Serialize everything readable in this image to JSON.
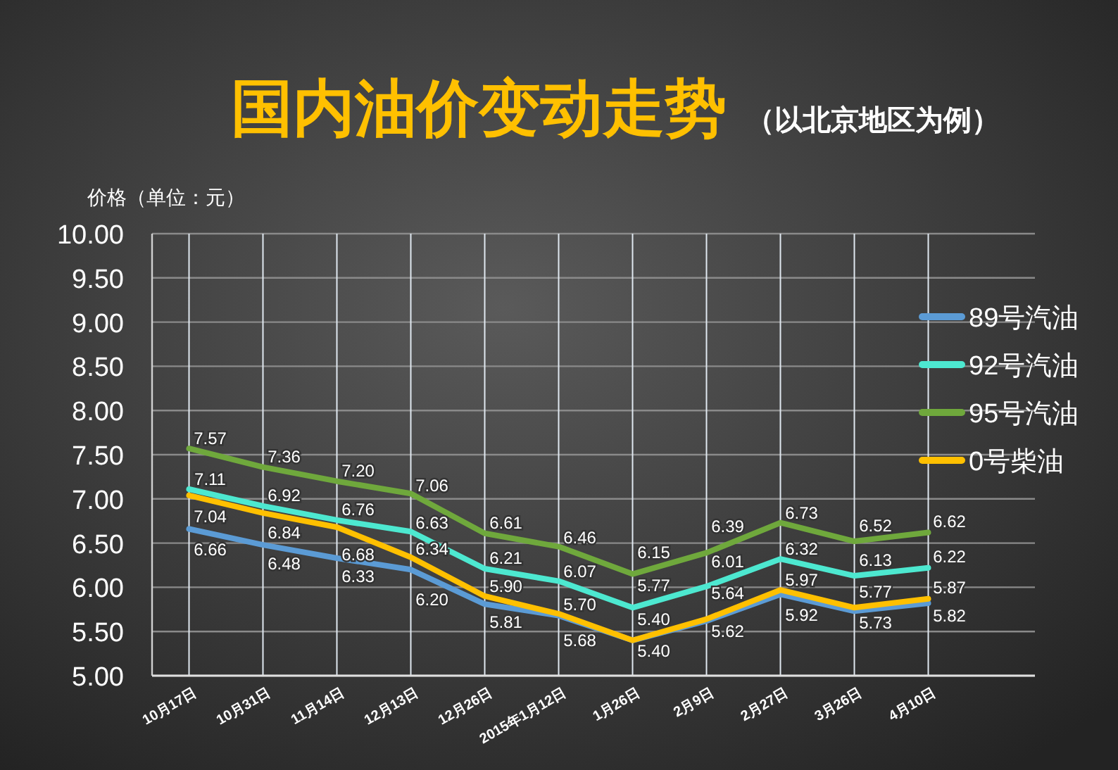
{
  "chart_data": {
    "type": "line",
    "title": "国内油价变动走势",
    "subtitle": "（以北京地区为例）",
    "ylabel": "价格（单位：元）",
    "categories": [
      "10月17日",
      "10月31日",
      "11月14日",
      "12月13日",
      "12月26日",
      "2015年1月12日",
      "1月26日",
      "2月9日",
      "2月27日",
      "3月26日",
      "4月10日"
    ],
    "series": [
      {
        "name": "89号汽油",
        "color": "#5b9bd5",
        "values": [
          6.66,
          6.48,
          6.33,
          6.2,
          5.81,
          5.68,
          5.4,
          5.62,
          5.92,
          5.73,
          5.82
        ],
        "value_labels": [
          "6.66",
          "6.48",
          "6.33",
          "6.20",
          "5.81",
          "5.68",
          "5.40",
          "5.62",
          "5.92",
          "5.73",
          "5.82"
        ]
      },
      {
        "name": "92号汽油",
        "color": "#4de8d0",
        "values": [
          7.11,
          6.92,
          6.76,
          6.63,
          6.21,
          6.07,
          5.77,
          6.01,
          6.32,
          6.13,
          6.22
        ],
        "value_labels": [
          "7.11",
          "6.92",
          "6.76",
          "6.63",
          "6.21",
          "6.07",
          "5.77",
          "6.01",
          "6.32",
          "6.13",
          "6.22"
        ]
      },
      {
        "name": "95号汽油",
        "color": "#6fa83c",
        "values": [
          7.57,
          7.36,
          7.2,
          7.06,
          6.61,
          6.46,
          6.15,
          6.39,
          6.73,
          6.52,
          6.62
        ],
        "value_labels": [
          "7.57",
          "7.36",
          "7.20",
          "7.06",
          "6.61",
          "6.46",
          "6.15",
          "6.39",
          "6.73",
          "6.52",
          "6.62"
        ]
      },
      {
        "name": "0号柴油",
        "color": "#ffc000",
        "values": [
          7.04,
          6.84,
          6.68,
          6.34,
          5.9,
          5.7,
          5.4,
          5.64,
          5.97,
          5.77,
          5.87
        ],
        "value_labels": [
          "7.04",
          "6.84",
          "6.68",
          "6.34",
          "5.90",
          "5.70",
          "5.40",
          "5.64",
          "5.97",
          "5.77",
          "5.87"
        ]
      }
    ],
    "ylim": [
      5,
      10
    ],
    "yticks": [
      {
        "value": 5,
        "label": "5.00"
      },
      {
        "value": 5.5,
        "label": "5.50"
      },
      {
        "value": 6,
        "label": "6.00"
      },
      {
        "value": 6.5,
        "label": "6.50"
      },
      {
        "value": 7,
        "label": "7.00"
      },
      {
        "value": 7.5,
        "label": "7.50"
      },
      {
        "value": 8,
        "label": "8.00"
      },
      {
        "value": 8.5,
        "label": "8.50"
      },
      {
        "value": 9,
        "label": "9.00"
      },
      {
        "value": 9.5,
        "label": "9.50"
      },
      {
        "value": 10,
        "label": "10.00"
      }
    ],
    "grid": true,
    "legend": "right",
    "marker": "none",
    "line_style": "solid"
  }
}
